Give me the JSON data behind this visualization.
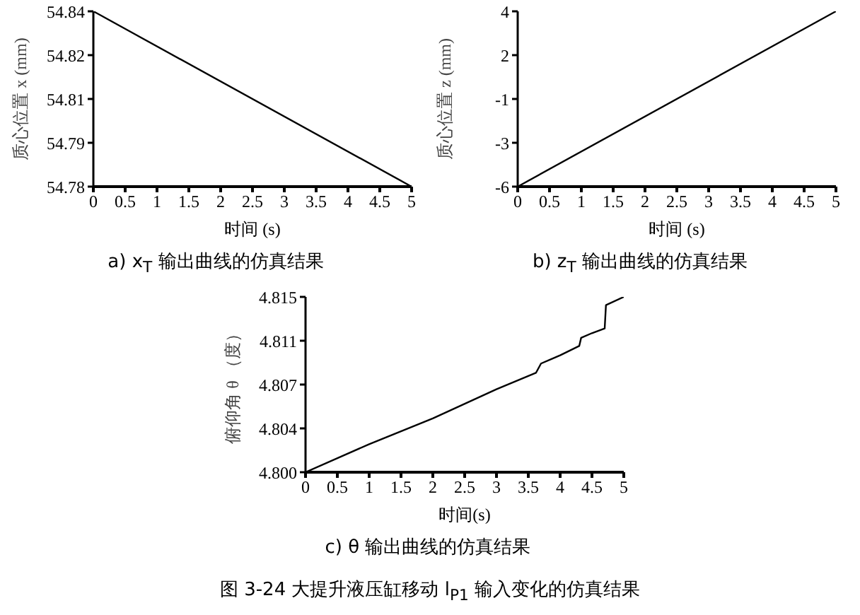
{
  "chart_data": [
    {
      "type": "line",
      "title": "a)  x$_{T}$ 输出曲线的仿真结果",
      "xlabel": "时间 (s)",
      "ylabel": "质心位置 x (mm)",
      "marker": "none",
      "x": [
        0,
        5
      ],
      "series": [
        {
          "color": "#000000",
          "values": [
            54.84,
            54.78
          ]
        }
      ],
      "xlim": [
        0,
        5
      ],
      "xticks": [
        0,
        0.5,
        1,
        1.5,
        2,
        2.5,
        3,
        3.5,
        4,
        4.5,
        5
      ],
      "ylim": [
        54.78,
        54.84
      ],
      "yticks": [
        54.78,
        {
          "value": 54.795,
          "label": "54.79"
        },
        54.81,
        {
          "value": 54.825,
          "label": "54.82"
        },
        54.84
      ]
    },
    {
      "type": "line",
      "title": "b)  z$_{T}$ 输出曲线的仿真结果",
      "xlabel": "时间 (s)",
      "ylabel": "质心位置 z (mm)",
      "marker": "none",
      "x": [
        0,
        5
      ],
      "series": [
        {
          "color": "#000000",
          "values": [
            -6,
            4
          ]
        }
      ],
      "xlim": [
        0,
        5
      ],
      "xticks": [
        0,
        0.5,
        1,
        1.5,
        2,
        2.5,
        3,
        3.5,
        4,
        4.5,
        5
      ],
      "ylim": [
        -6,
        4
      ],
      "yticks": [
        -6,
        {
          "value": -3.5,
          "label": "-3"
        },
        -1,
        {
          "value": 1.5,
          "label": "2"
        },
        4
      ]
    },
    {
      "type": "line",
      "title": "c)  θ 输出曲线的仿真结果",
      "xlabel": "时间(s)",
      "ylabel": "俯仰角 θ （度）",
      "marker": "none",
      "x": [
        0,
        1,
        2,
        3,
        3.62,
        3.7,
        4,
        4.3,
        4.33,
        4.5,
        4.7,
        4.72,
        5
      ],
      "series": [
        {
          "color": "#000000",
          "values": [
            4.8,
            4.8024,
            4.8046,
            4.8071,
            4.8085,
            4.8093,
            4.81,
            4.8108,
            4.8115,
            4.8119,
            4.8123,
            4.8143,
            4.815
          ]
        }
      ],
      "xlim": [
        0,
        5
      ],
      "xticks": [
        0,
        0.5,
        1,
        1.5,
        2,
        2.5,
        3,
        3.5,
        4,
        4.5,
        5
      ],
      "ylim": [
        4.8,
        4.815
      ],
      "yticks": [
        {
          "value": 4.8,
          "label": "4.800"
        },
        {
          "value": 4.80375,
          "label": "4.804"
        },
        {
          "value": 4.8075,
          "label": "4.807"
        },
        {
          "value": 4.81125,
          "label": "4.811"
        },
        4.815
      ],
      "annotations": [
        "图 3-24 大提升液压缸移动 l$_{P1}$ 输入变化的仿真结果"
      ]
    }
  ]
}
